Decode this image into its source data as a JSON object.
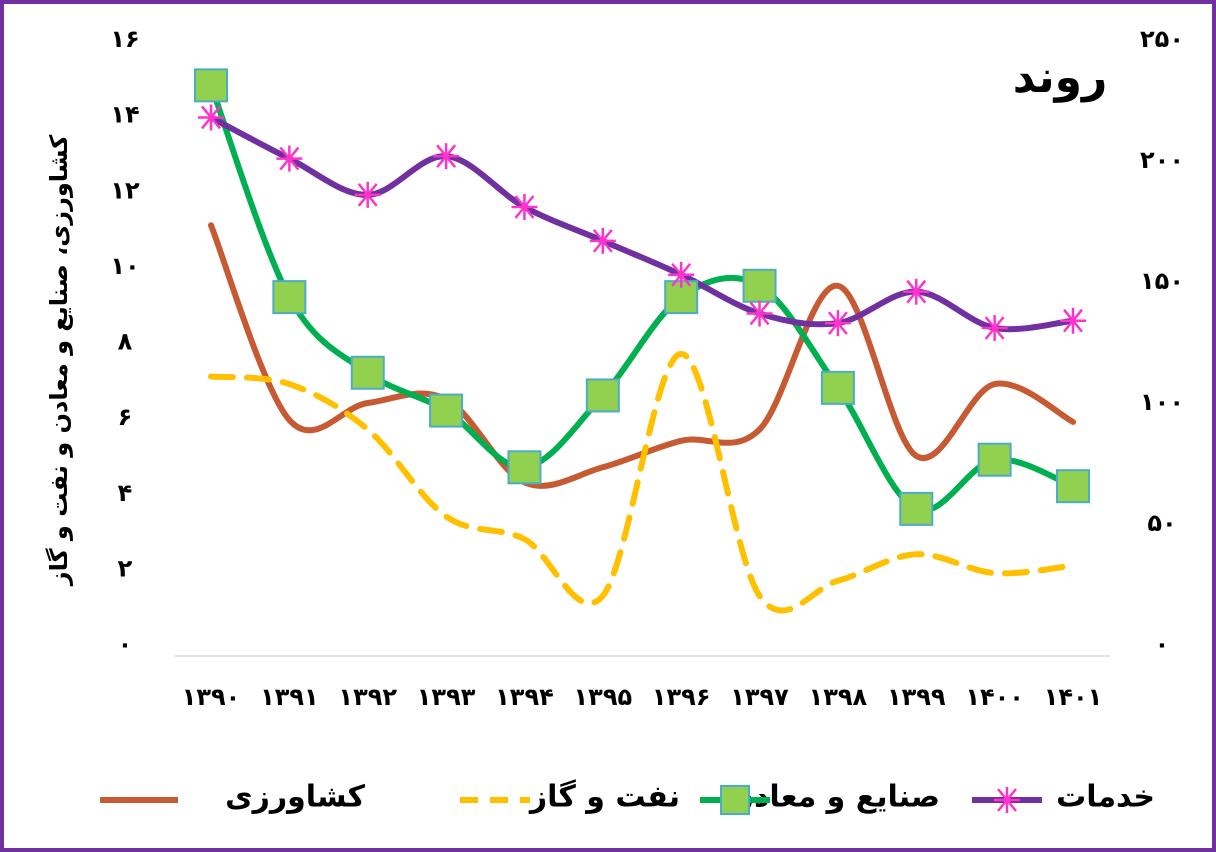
{
  "chart_data": {
    "type": "line",
    "title": "روند",
    "y_label": "کشاورزی، صنایع و معادن  و نفت و گاز",
    "categories": [
      "۱۳۹۰",
      "۱۳۹۱",
      "۱۳۹۲",
      "۱۳۹۳",
      "۱۳۹۴",
      "۱۳۹۵",
      "۱۳۹۶",
      "۱۳۹۷",
      "۱۳۹۸",
      "۱۳۹۹",
      "۱۴۰۰",
      "۱۴۰۱"
    ],
    "ylim": [
      0,
      16
    ],
    "yticks": [
      {
        "value": 0,
        "label": "۰"
      },
      {
        "value": 2,
        "label": "۲"
      },
      {
        "value": 4,
        "label": "۴"
      },
      {
        "value": 6,
        "label": "۶"
      },
      {
        "value": 8,
        "label": "۸"
      },
      {
        "value": 10,
        "label": "۱۰"
      },
      {
        "value": 12,
        "label": "۱۲"
      },
      {
        "value": 14,
        "label": "۱۴"
      },
      {
        "value": 16,
        "label": "۱۶"
      }
    ],
    "y2lim": [
      0,
      250
    ],
    "y2ticks": [
      {
        "value": 0,
        "label": "۰"
      },
      {
        "value": 50,
        "label": "۵۰"
      },
      {
        "value": 100,
        "label": "۱۰۰"
      },
      {
        "value": 150,
        "label": "۱۵۰"
      },
      {
        "value": 200,
        "label": "۲۰۰"
      },
      {
        "value": 250,
        "label": "۲۵۰"
      }
    ],
    "series": [
      {
        "name": "کشاورزی",
        "color": "#c65a33",
        "dash": false,
        "marker": "none",
        "values": [
          11.1,
          5.95,
          6.4,
          6.5,
          4.3,
          4.7,
          5.4,
          5.7,
          9.5,
          5.0,
          6.9,
          5.9
        ]
      },
      {
        "name": "نفت و گاز",
        "color": "#ffc000",
        "dash": true,
        "marker": "none",
        "values": [
          7.1,
          6.9,
          5.7,
          3.4,
          2.8,
          1.3,
          7.7,
          1.3,
          1.7,
          2.4,
          1.9,
          2.1
        ]
      },
      {
        "name": "صنایع و معادن",
        "color": "#00b050",
        "dash": false,
        "marker": "square",
        "marker_color": "#92d050",
        "values": [
          14.8,
          9.2,
          7.2,
          6.2,
          4.7,
          6.6,
          9.2,
          9.5,
          6.8,
          3.6,
          4.9,
          4.2
        ]
      },
      {
        "name": "خدمات",
        "color": "#7030a0",
        "dash": false,
        "marker": "star",
        "marker_color": "#ff33cc",
        "axis": "y2",
        "values": [
          218,
          201,
          186,
          202,
          181,
          167,
          153,
          137,
          133,
          146,
          131,
          134
        ]
      }
    ]
  }
}
